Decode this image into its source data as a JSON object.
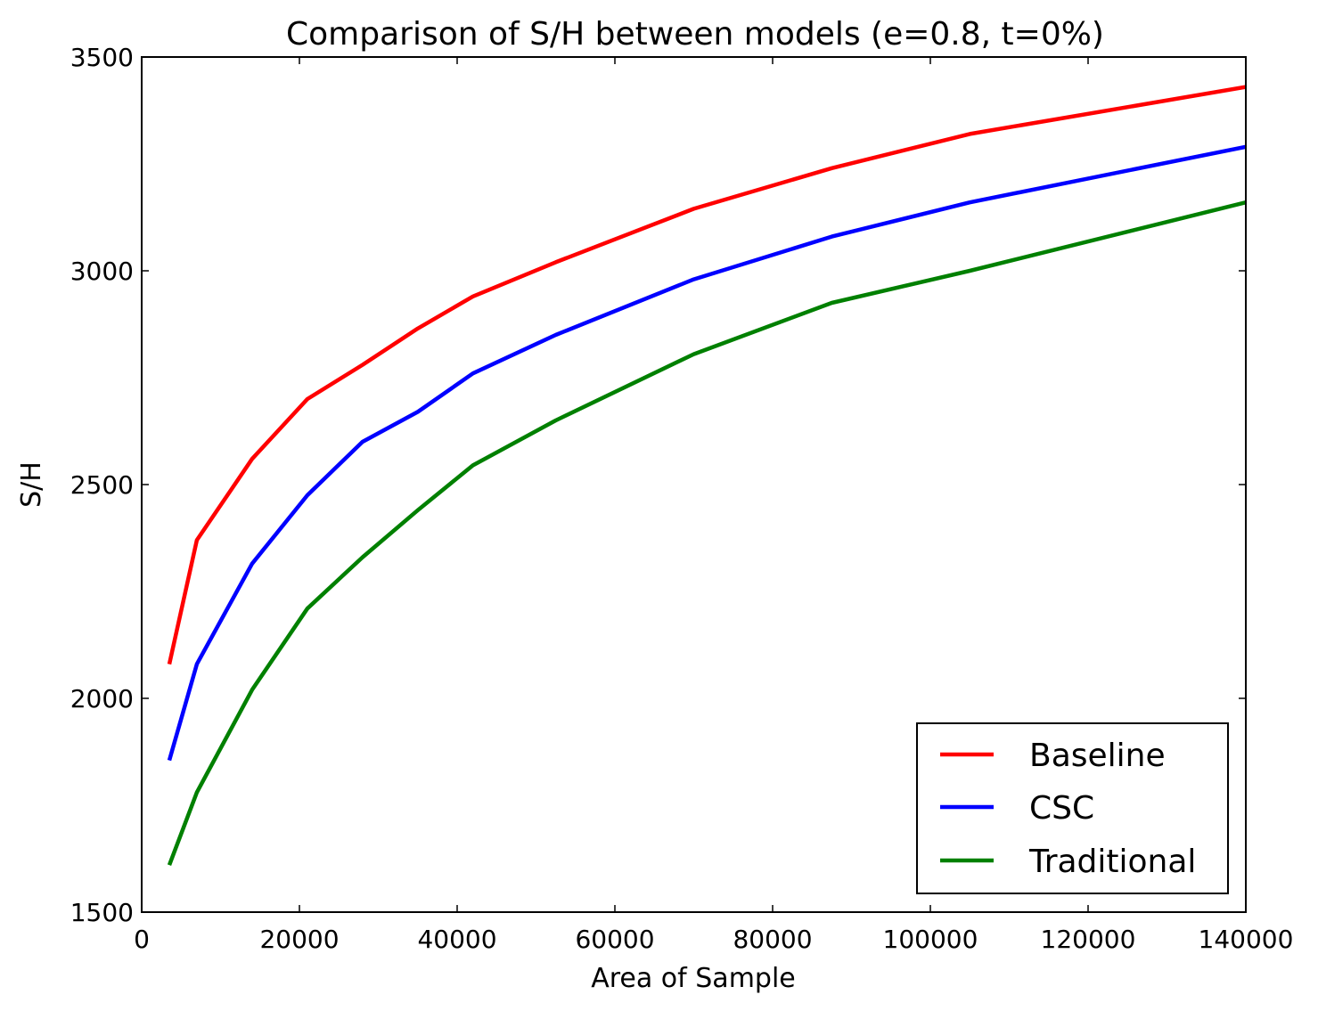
{
  "chart_data": {
    "type": "line",
    "title": "Comparison of S/H between models (e=0.8, t=0%)",
    "xlabel": "Area of Sample",
    "ylabel": "S/H",
    "xlim": [
      0,
      140000
    ],
    "ylim": [
      1500,
      3500
    ],
    "x_ticks": [
      "0",
      "20000",
      "40000",
      "60000",
      "80000",
      "100000",
      "120000",
      "140000"
    ],
    "y_ticks": [
      "1500",
      "2000",
      "2500",
      "3000",
      "3500"
    ],
    "legend_position": "lower-right",
    "grid": false,
    "x": [
      3500,
      7000,
      14000,
      21000,
      28000,
      35000,
      42000,
      52500,
      70000,
      87500,
      105000,
      140000
    ],
    "series": [
      {
        "name": "Baseline",
        "color": "#ff0000",
        "values": [
          2080,
          2370,
          2560,
          2700,
          2780,
          2865,
          2940,
          3020,
          3145,
          3240,
          3320,
          3430
        ]
      },
      {
        "name": "CSC",
        "color": "#0000ff",
        "values": [
          1855,
          2080,
          2315,
          2475,
          2600,
          2670,
          2760,
          2850,
          2980,
          3080,
          3160,
          3290
        ]
      },
      {
        "name": "Traditional",
        "color": "#008000",
        "values": [
          1610,
          1780,
          2020,
          2210,
          2330,
          2440,
          2545,
          2650,
          2805,
          2925,
          3000,
          3160
        ]
      }
    ]
  }
}
